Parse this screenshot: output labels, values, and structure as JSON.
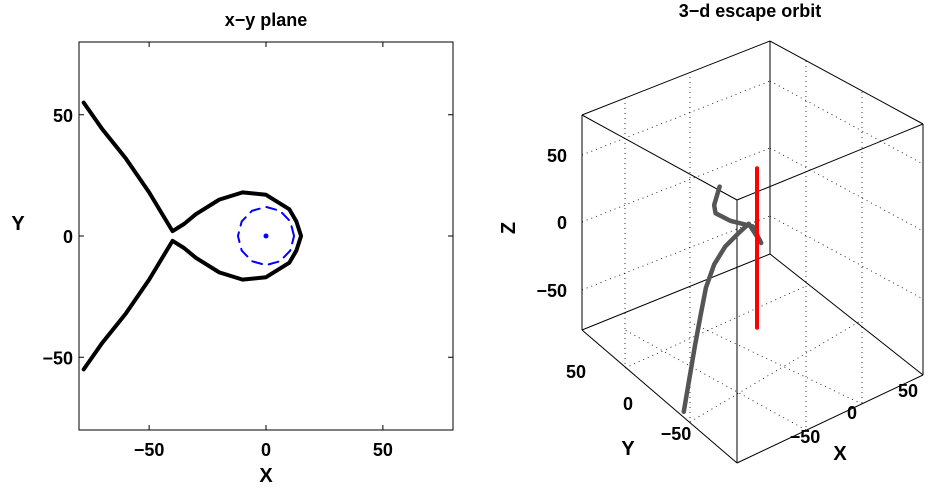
{
  "figure": {
    "background": "#ffffff"
  },
  "chart_data": [
    {
      "type": "line",
      "title": "x−y plane",
      "xlabel": "X",
      "ylabel": "Y",
      "xlim": [
        -80,
        80
      ],
      "ylim": [
        -80,
        80
      ],
      "xticks": [
        -50,
        0,
        50
      ],
      "xtick_labels": [
        "−50",
        "0",
        "50"
      ],
      "yticks": [
        -50,
        0,
        50
      ],
      "ytick_labels": [
        "−50",
        "0",
        "50"
      ],
      "grid": false,
      "series": [
        {
          "color": "#000000",
          "style": "solid",
          "x": [
            -78,
            -70,
            -60,
            -50,
            -40,
            -35,
            -30,
            -20,
            -10,
            0,
            10,
            13,
            15,
            13,
            10,
            0,
            -10,
            -20,
            -30,
            -35,
            -40,
            -50,
            -60,
            -70,
            -78
          ],
          "y": [
            55,
            44,
            32,
            18,
            2,
            5,
            9,
            15,
            18,
            17,
            11,
            6,
            0,
            -6,
            -11,
            -17,
            -18,
            -15,
            -9,
            -5,
            -2,
            -18,
            -32,
            -44,
            -55
          ]
        },
        {
          "color": "#0000ff",
          "style": "dashed",
          "x": [
            12,
            10.4,
            6,
            0,
            -6,
            -10.4,
            -12,
            -10.4,
            -6,
            0,
            6,
            10.4,
            12
          ],
          "y": [
            0,
            6,
            10.4,
            12,
            10.4,
            6,
            0,
            -6,
            -10.4,
            -12,
            -10.4,
            -6,
            0
          ]
        },
        {
          "color": "#0000ff",
          "style": "point",
          "x": [
            0
          ],
          "y": [
            0
          ]
        }
      ]
    },
    {
      "type": "line",
      "title": "3−d escape orbit",
      "xlabel": "X",
      "ylabel": "Y",
      "zlabel": "Z",
      "xticks": [
        -50,
        0,
        50
      ],
      "xtick_labels": [
        "−50",
        "0",
        "50"
      ],
      "yticks": [
        -50,
        0,
        50
      ],
      "ytick_labels": [
        "−50",
        "0",
        "50"
      ],
      "zticks": [
        -50,
        0,
        50
      ],
      "ztick_labels": [
        "−50",
        "0",
        "50"
      ],
      "grid": true,
      "series": [
        {
          "color": "#555555",
          "style": "solid",
          "x": [
            -75,
            -65,
            -55,
            -45,
            -35,
            -25,
            -15,
            -5,
            0,
            5,
            -5,
            -25,
            -40,
            -45,
            -45
          ],
          "y": [
            -55,
            -40,
            -25,
            -10,
            5,
            15,
            20,
            20,
            15,
            5,
            -5,
            -15,
            -25,
            -35,
            -45
          ],
          "z": [
            -75,
            -60,
            -45,
            -32,
            -20,
            -10,
            -2,
            5,
            12,
            0,
            20,
            35,
            50,
            62,
            80
          ]
        },
        {
          "color": "#ff0000",
          "style": "solid",
          "x": [
            0,
            0
          ],
          "y": [
            0,
            0
          ],
          "z": [
            -60,
            60
          ]
        }
      ]
    }
  ]
}
